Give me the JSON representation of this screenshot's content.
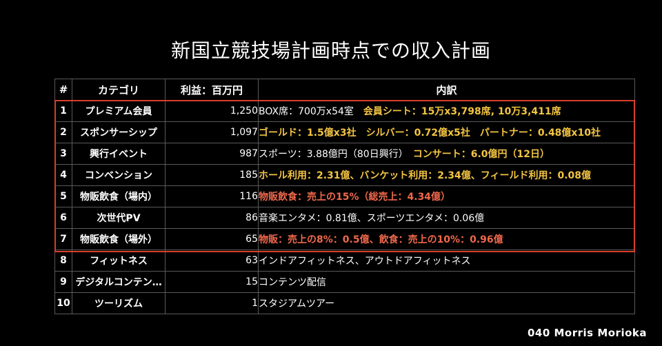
{
  "title": "新国立競技場計画時点での収入計画",
  "headers": {
    "num": "#",
    "category": "カテゴリ",
    "profit": "利益：百万円",
    "breakdown": "内訳"
  },
  "rows": [
    {
      "num": "1",
      "category": "プレミアム会員",
      "value": "1,250",
      "detail_white": "BOX席：700万x54室　",
      "detail_yellow": "会員シート：15万x3,798席, 10万3,411席",
      "detail_red": ""
    },
    {
      "num": "2",
      "category": "スポンサーシップ",
      "value": "1,097",
      "detail_white": "",
      "detail_yellow": "ゴールド：1.5億x3社　シルバー：0.72億x5社　パートナー：0.48億x10社",
      "detail_red": ""
    },
    {
      "num": "3",
      "category": "興行イベント",
      "value": "987",
      "detail_white": "スポーツ：3.88億円（80日興行）　",
      "detail_yellow": "コンサート：6.0億円（12日）",
      "detail_red": ""
    },
    {
      "num": "4",
      "category": "コンベンション",
      "value": "185",
      "detail_white": "",
      "detail_yellow": "ホール利用：2.31億、バンケット利用：2.34億、フィールド利用：0.08億",
      "detail_red": ""
    },
    {
      "num": "5",
      "category": "物販飲食（場内）",
      "value": "116",
      "detail_white": "",
      "detail_yellow": "",
      "detail_red": "物販飲食：売上の15%（総売上：4.34億）"
    },
    {
      "num": "6",
      "category": "次世代PV",
      "value": "86",
      "detail_white": "音楽エンタメ：0.81億、スポーツエンタメ：0.06億",
      "detail_yellow": "",
      "detail_red": ""
    },
    {
      "num": "7",
      "category": "物販飲食（場外）",
      "value": "65",
      "detail_white": "",
      "detail_yellow": "",
      "detail_red": "物販：売上の8%：0.5億、飲食：売上の10%：0.96億"
    },
    {
      "num": "8",
      "category": "フィットネス",
      "value": "63",
      "detail_white": "インドアフィットネス、アウトドアフィットネス",
      "detail_yellow": "",
      "detail_red": ""
    },
    {
      "num": "9",
      "category": "デジタルコンテン…",
      "value": "15",
      "detail_white": "コンテンツ配信",
      "detail_yellow": "",
      "detail_red": ""
    },
    {
      "num": "10",
      "category": "ツーリズム",
      "value": "1",
      "detail_white": "スタジアムツアー",
      "detail_yellow": "",
      "detail_red": ""
    }
  ],
  "highlight_color": "#d7402b",
  "credit": "040 Morris Morioka"
}
